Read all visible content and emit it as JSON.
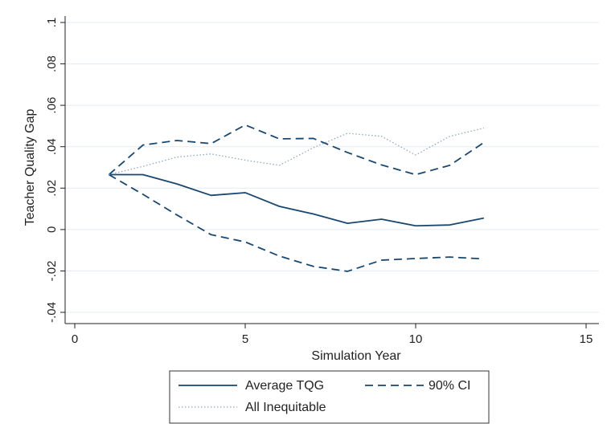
{
  "chart_data": {
    "type": "line",
    "title": "",
    "xlabel": "Simulation Year",
    "ylabel": "Teacher Quality Gap",
    "xlim": [
      0,
      15
    ],
    "ylim": [
      -0.04,
      0.1
    ],
    "x_ticks": [
      0,
      5,
      10,
      15
    ],
    "x_tick_labels": [
      "0",
      "5",
      "10",
      "15"
    ],
    "y_ticks": [
      -0.04,
      -0.02,
      0,
      0.02,
      0.04,
      0.06,
      0.08,
      0.1
    ],
    "y_tick_labels": [
      "-.04",
      "-.02",
      "0",
      ".02",
      ".04",
      ".06",
      ".08",
      ".1"
    ],
    "grid": true,
    "legend_position": "bottom",
    "x": [
      1,
      2,
      3,
      4,
      5,
      6,
      7,
      8,
      9,
      10,
      11,
      12
    ],
    "series": [
      {
        "name": "Average TQG",
        "style": "solid",
        "color": "#1a476f",
        "values": [
          0.0265,
          0.0265,
          0.022,
          0.0165,
          0.0178,
          0.0112,
          0.0075,
          0.003,
          0.005,
          0.0018,
          0.0022,
          0.0055
        ]
      },
      {
        "name": "90% CI",
        "style": "dashed",
        "color": "#1a476f",
        "values": [
          0.0265,
          0.0408,
          0.043,
          0.0415,
          0.0505,
          0.0438,
          0.044,
          0.0372,
          0.0312,
          0.0265,
          0.031,
          0.042
        ]
      },
      {
        "name": "90% CI lower",
        "style": "dashed",
        "color": "#1a476f",
        "values": [
          0.0265,
          0.017,
          0.007,
          -0.0025,
          -0.006,
          -0.0128,
          -0.0178,
          -0.0202,
          -0.0148,
          -0.014,
          -0.0133,
          -0.0142
        ]
      },
      {
        "name": "All Inequitable",
        "style": "dotted",
        "color": "#90a8c0",
        "values": [
          0.0265,
          0.0305,
          0.035,
          0.0365,
          0.0335,
          0.031,
          0.0395,
          0.0465,
          0.045,
          0.036,
          0.045,
          0.049
        ]
      }
    ],
    "legend": {
      "entries": [
        "Average TQG",
        "90% CI",
        "All Inequitable"
      ]
    }
  }
}
